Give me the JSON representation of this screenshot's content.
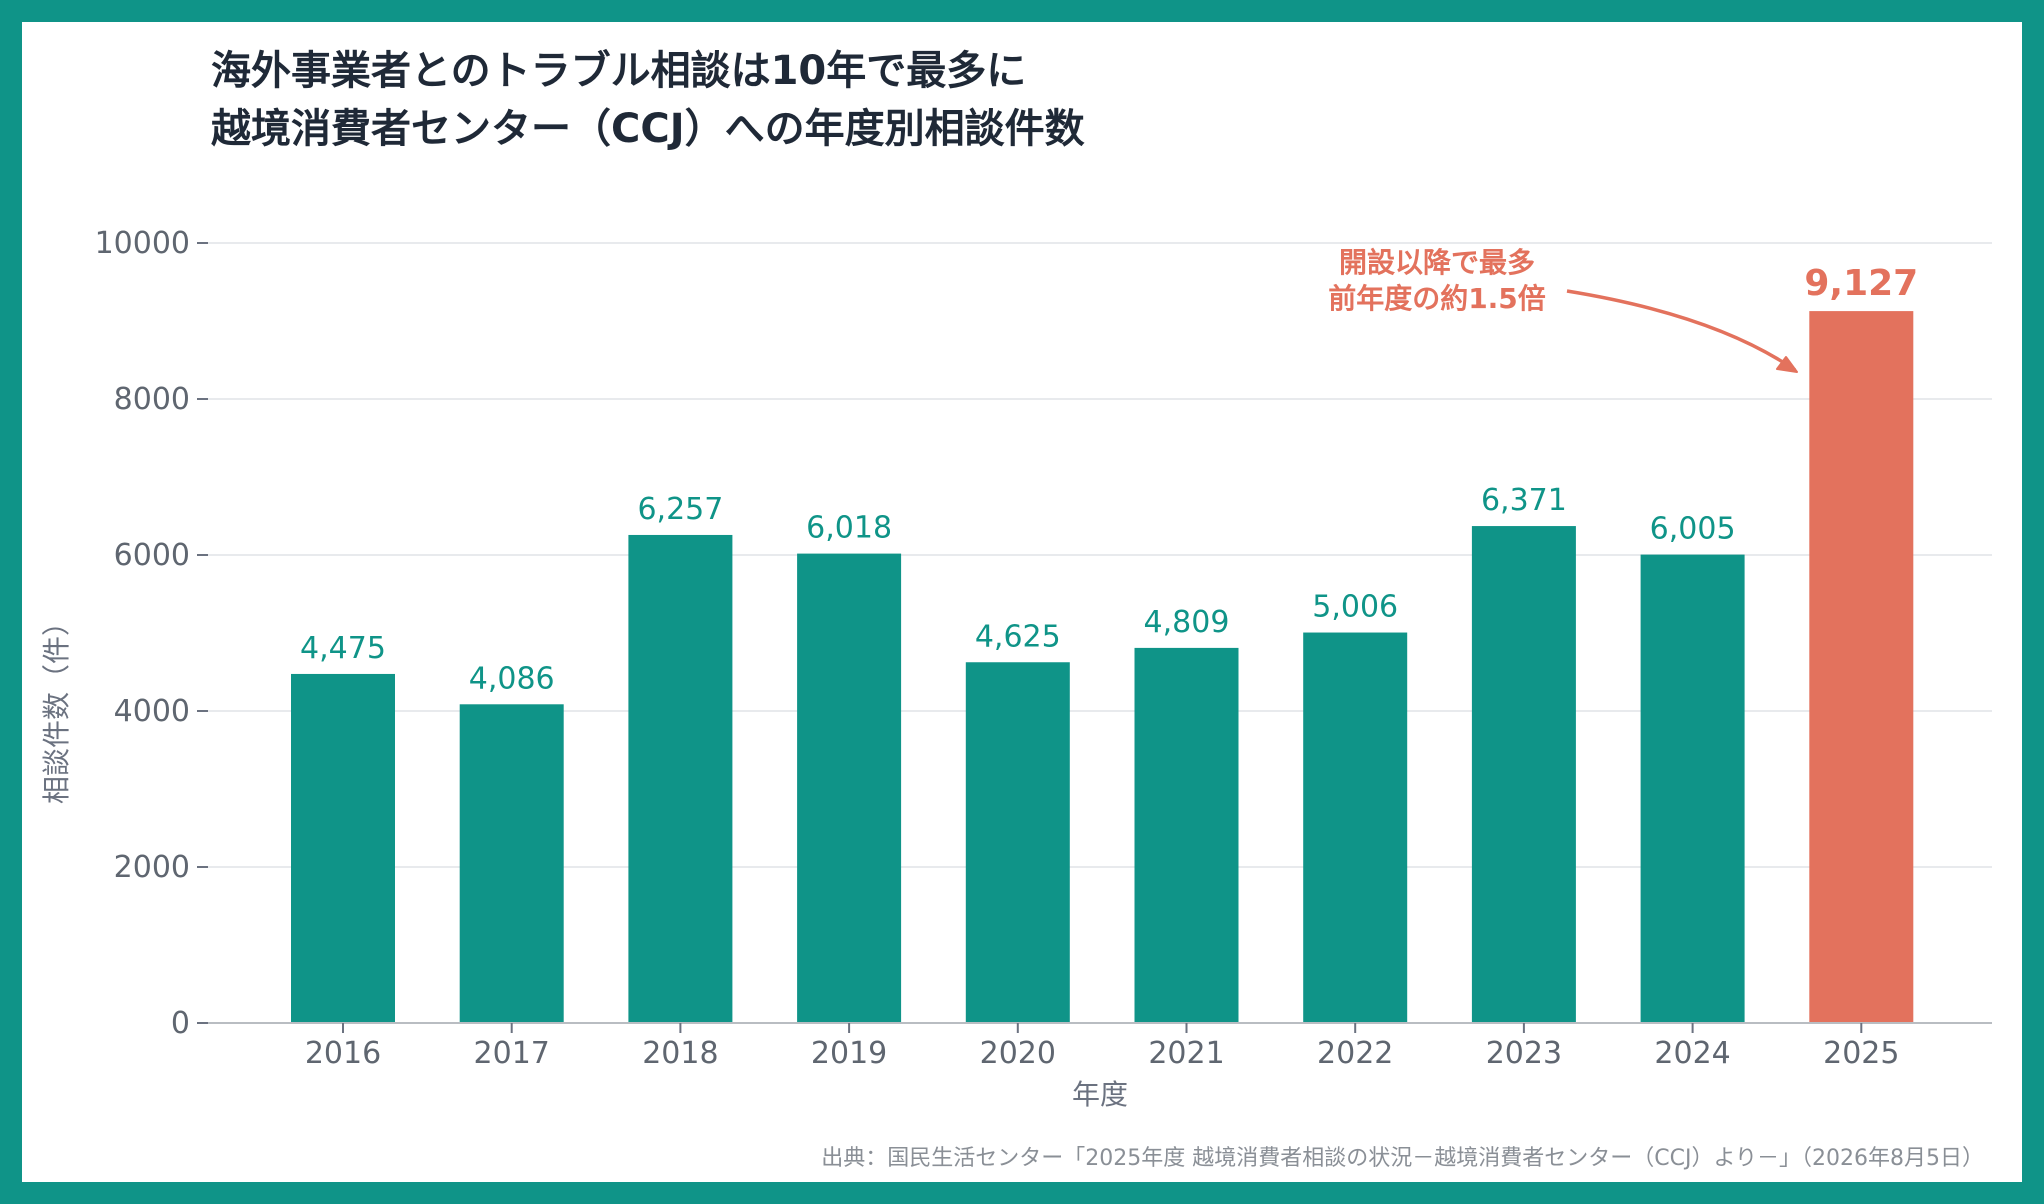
{
  "title_line1": "海外事業者とのトラブル相談は10年で最多に",
  "title_line2": "越境消費者センター（CCJ）への年度別相談件数",
  "source": "出典：国民生活センター「2025年度 越境消費者相談の状況－越境消費者センター（CCJ）より－」（2026年8月5日）",
  "colors": {
    "frame": "#0f9488",
    "bar": "#0f9488",
    "highlight": "#e3725d",
    "text": "#1f2937",
    "muted": "#6b7280",
    "grid": "#e8eaed"
  },
  "chart_data": {
    "type": "bar",
    "categories": [
      "2016",
      "2017",
      "2018",
      "2019",
      "2020",
      "2021",
      "2022",
      "2023",
      "2024",
      "2025"
    ],
    "values": [
      4475,
      4086,
      6257,
      6018,
      4625,
      4809,
      5006,
      6371,
      6005,
      9127
    ],
    "data_labels": [
      "4,475",
      "4,086",
      "6,257",
      "6,018",
      "4,625",
      "4,809",
      "5,006",
      "6,371",
      "6,005",
      "9,127"
    ],
    "highlight_category": "2025",
    "xlabel": "年度",
    "ylabel": "相談件数（件）",
    "ylim": [
      0,
      10000
    ],
    "yticks": [
      0,
      2000,
      4000,
      6000,
      8000,
      10000
    ],
    "grid": true,
    "legend": "none",
    "annotation": {
      "target": "2025",
      "lines": [
        "開設以降で最多",
        "前年度の約1.5倍"
      ]
    }
  }
}
